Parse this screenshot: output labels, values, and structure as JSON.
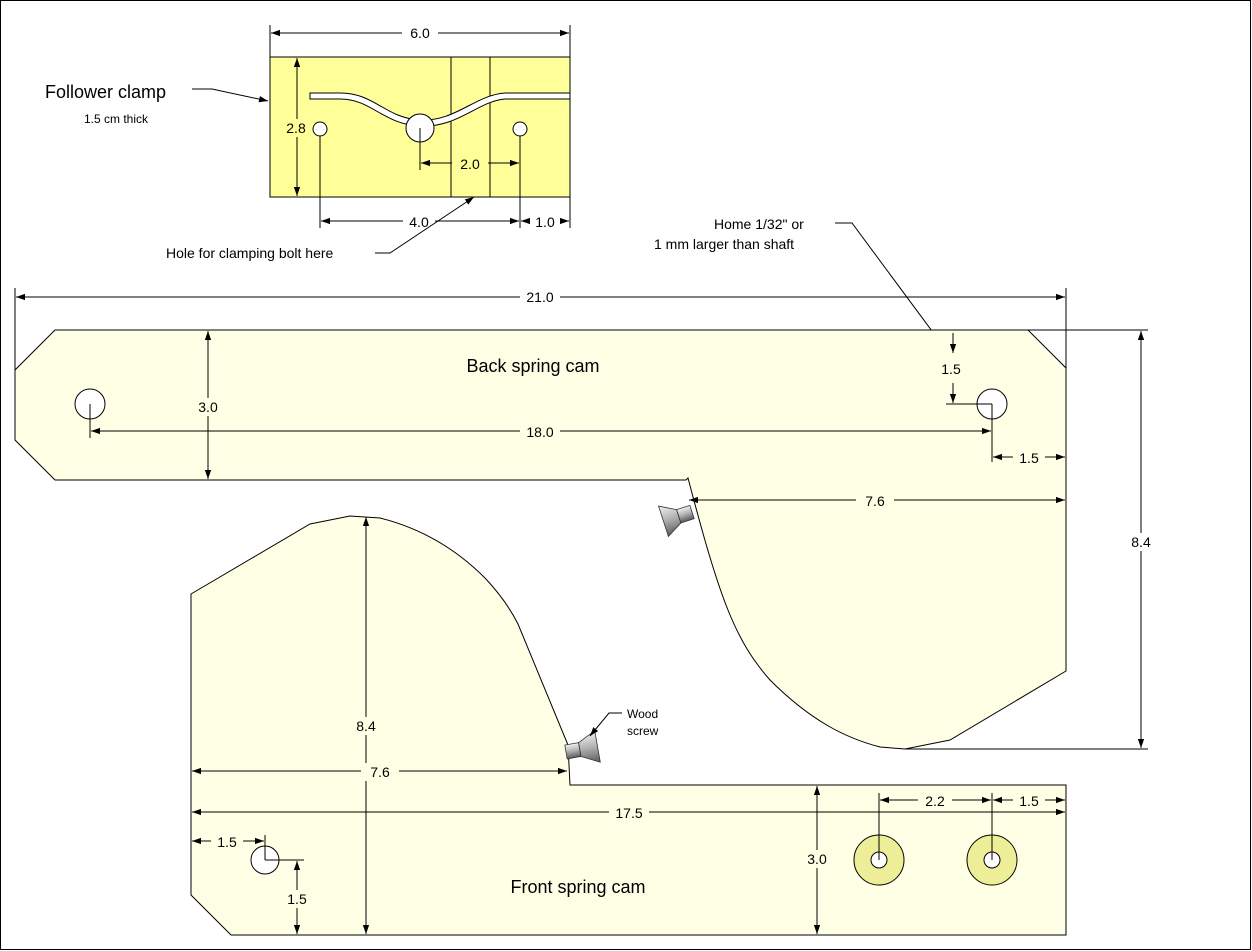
{
  "colors": {
    "clamp_fill": "#ffff99",
    "cam_fill": "#ffffe6",
    "washer_fill": "#eeee99",
    "outline": "#000000"
  },
  "follower_clamp": {
    "title": "Follower clamp",
    "subtitle": "1.5 cm thick",
    "dim_width": "6.0",
    "dim_height": "2.8",
    "dim_hole_spacing": "2.0",
    "dim_left_hole": "4.0",
    "dim_right_hole": "1.0",
    "bolt_note": "Hole for clamping bolt here"
  },
  "home_note": {
    "line1": "Home 1/32\" or",
    "line2": "1 mm larger than shaft"
  },
  "back_cam": {
    "title": "Back spring cam",
    "dim_overall": "21.0",
    "dim_height": "3.0",
    "dim_holes": "18.0",
    "dim_hole_top": "1.5",
    "dim_hole_right": "1.5",
    "dim_lobe": "7.6",
    "dim_total_height": "8.4"
  },
  "front_cam": {
    "title": "Front spring cam",
    "dim_lobe_height": "8.4",
    "dim_lobe": "7.6",
    "dim_overall": "17.5",
    "dim_hole_left": "1.5",
    "dim_hole_bottom": "1.5",
    "dim_height": "3.0",
    "dim_washer_spacing": "2.2",
    "dim_washer_right": "1.5"
  },
  "wood_screw_note": {
    "line1": "Wood",
    "line2": "screw"
  }
}
